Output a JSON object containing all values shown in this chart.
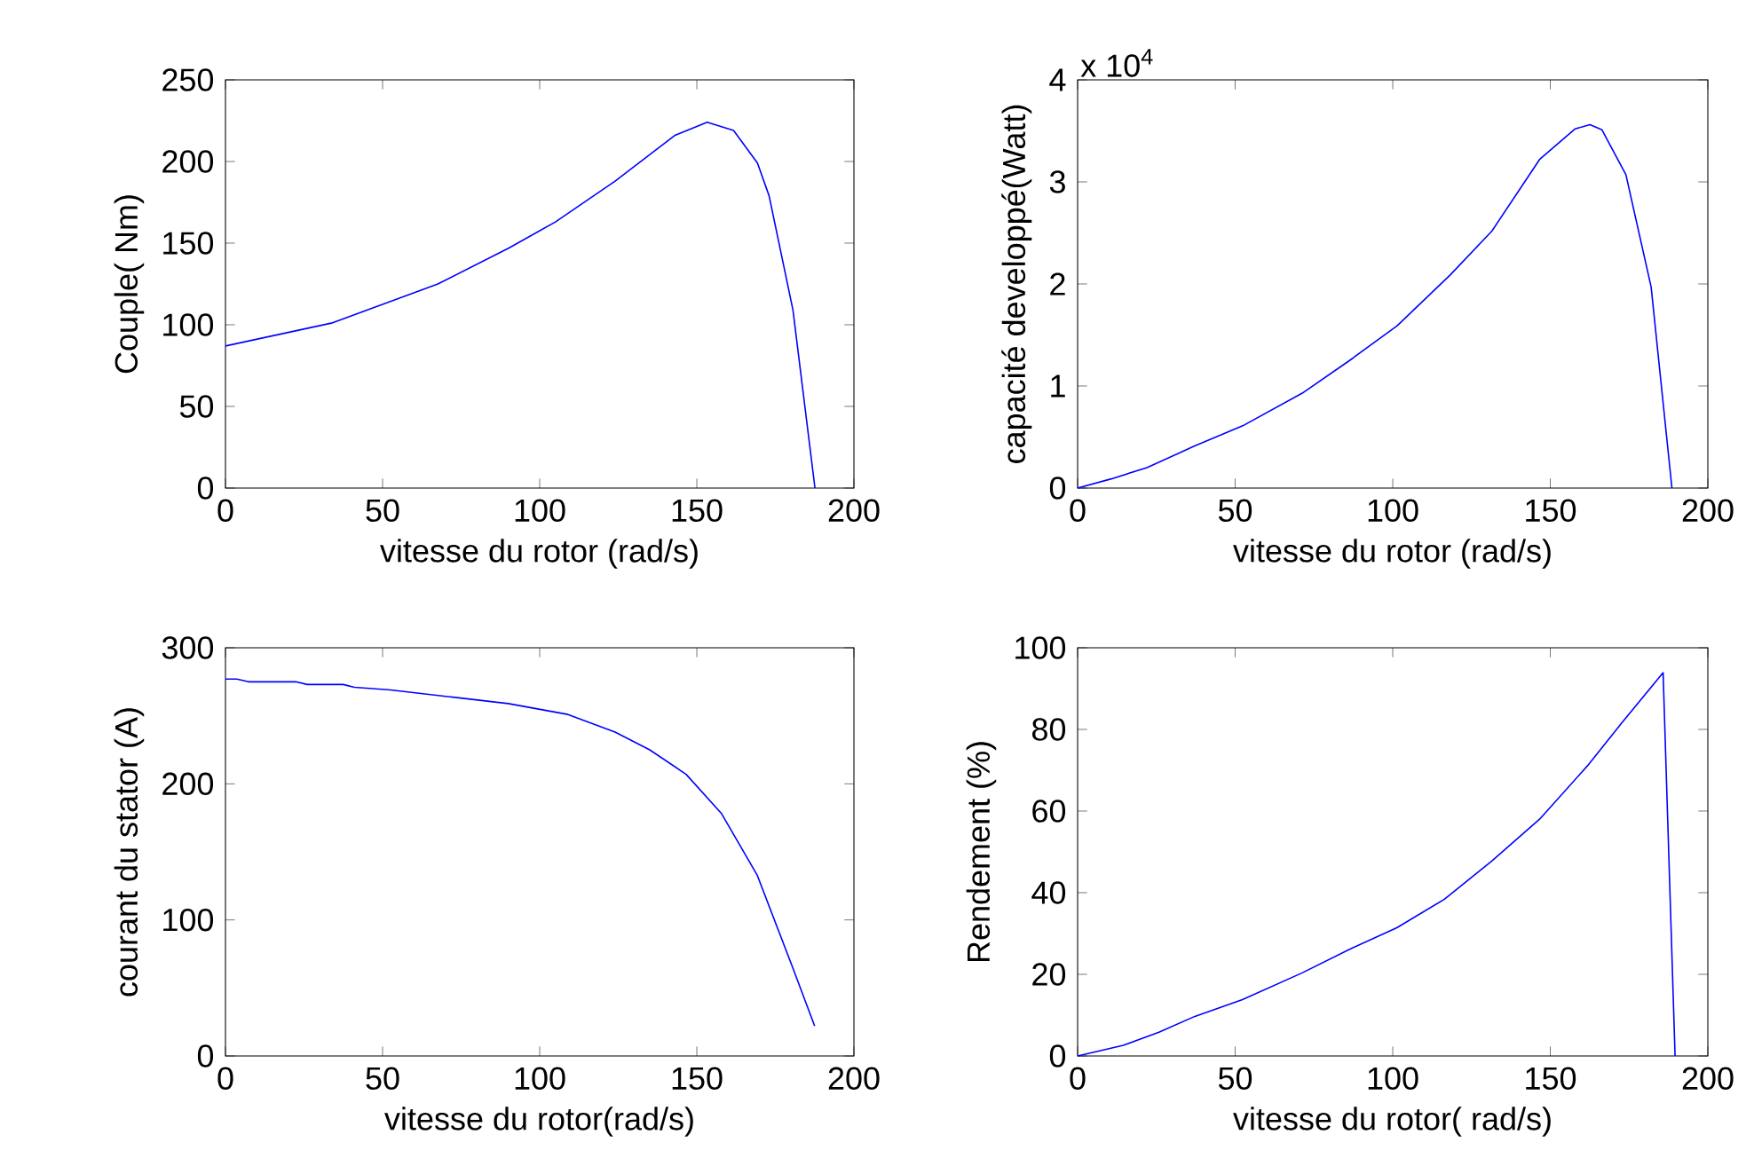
{
  "chart_data": [
    {
      "type": "line",
      "xlabel": "vitesse du rotor (rad/s)",
      "ylabel": "Couple( Nm)",
      "xlim": [
        0,
        200
      ],
      "ylim": [
        0,
        250
      ],
      "xticks": [
        0,
        50,
        100,
        150,
        200
      ],
      "yticks": [
        0,
        50,
        100,
        150,
        200,
        250
      ],
      "grid": false,
      "series": [
        {
          "color": "#0000ff",
          "x": [
            0,
            33.7,
            45,
            67.6,
            90.2,
            105,
            124,
            143,
            153.3,
            161.7,
            169.3,
            173,
            180.6,
            187.6
          ],
          "values": [
            87,
            101,
            109,
            125,
            147,
            163,
            188,
            216,
            224,
            219,
            199,
            179,
            109,
            0
          ]
        }
      ]
    },
    {
      "type": "line",
      "xlabel": "vitesse du rotor (rad/s)",
      "ylabel": "capacité developpé(Watt)",
      "annotations": [
        "x 10$^{4}$"
      ],
      "xlim": [
        0,
        200
      ],
      "ylim": [
        0,
        4
      ],
      "xticks": [
        0,
        50,
        100,
        150,
        200
      ],
      "yticks": [
        0,
        1,
        2,
        3,
        4
      ],
      "grid": false,
      "series": [
        {
          "color": "#0000ff",
          "x": [
            0,
            10.7,
            22,
            37,
            52.4,
            71.3,
            86.3,
            101.4,
            118.3,
            131.5,
            146.6,
            157.9,
            162.6,
            166.4,
            174,
            182,
            188.6
          ],
          "values": [
            0,
            0.09,
            0.2,
            0.41,
            0.61,
            0.93,
            1.25,
            1.59,
            2.09,
            2.52,
            3.22,
            3.52,
            3.56,
            3.51,
            3.07,
            1.97,
            0
          ]
        }
      ]
    },
    {
      "type": "line",
      "xlabel": "vitesse du rotor(rad/s)",
      "ylabel": "courant du stator (A)",
      "xlim": [
        0,
        200
      ],
      "ylim": [
        0,
        300
      ],
      "xticks": [
        0,
        50,
        100,
        150,
        200
      ],
      "yticks": [
        0,
        100,
        200,
        300
      ],
      "grid": false,
      "series": [
        {
          "color": "#0000ff",
          "x": [
            0,
            3.6,
            7.3,
            22.4,
            26,
            37.5,
            41,
            52.5,
            71.3,
            90,
            109,
            124,
            135,
            146.6,
            157.9,
            169.2,
            180.5,
            187.5
          ],
          "values": [
            277,
            277,
            275,
            275,
            273,
            273,
            271,
            269,
            264,
            259,
            251,
            238,
            225,
            207,
            178,
            133,
            65,
            22
          ]
        }
      ]
    },
    {
      "type": "line",
      "xlabel": "vitesse du rotor( rad/s)",
      "ylabel": "Rendement (%)",
      "xlim": [
        0,
        200
      ],
      "ylim": [
        0,
        100
      ],
      "xticks": [
        0,
        50,
        100,
        150,
        200
      ],
      "yticks": [
        0,
        20,
        40,
        60,
        80,
        100
      ],
      "grid": false,
      "series": [
        {
          "color": "#0000ff",
          "x": [
            0,
            14.5,
            25.8,
            37.2,
            52.3,
            71.1,
            86.2,
            101.3,
            116.4,
            131.5,
            146.6,
            161.7,
            173,
            185.8,
            189.6
          ],
          "values": [
            0,
            2.6,
            5.8,
            9.7,
            13.8,
            20.3,
            26.1,
            31.4,
            38.4,
            47.8,
            58,
            71,
            81.9,
            93.9,
            0
          ]
        }
      ]
    }
  ]
}
